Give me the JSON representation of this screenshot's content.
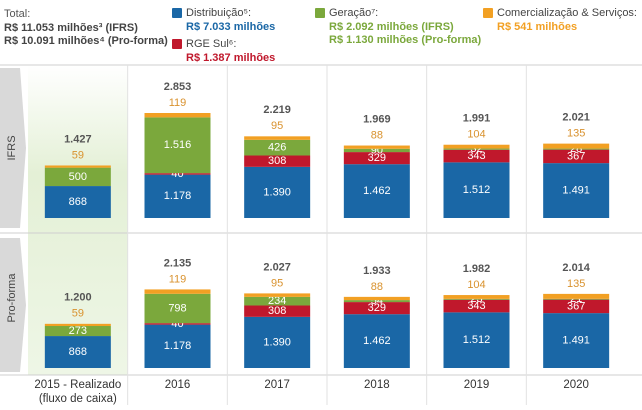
{
  "chart_data": {
    "type": "bar",
    "stacked": true,
    "totals_label": "Total:",
    "totals_notes": [
      "R$ 11.053 milhões³ (IFRS)",
      "R$ 10.091 milhões⁴ (Pro-forma)"
    ],
    "categories": [
      "2015 - Realizado (fluxo de caixa)",
      "2016",
      "2017",
      "2018",
      "2019",
      "2020"
    ],
    "series": [
      {
        "name": "Distribuição⁵:",
        "color": "#1a67a6",
        "notes": [
          "R$ 7.033 milhões"
        ]
      },
      {
        "name": "RGE Sul⁶:",
        "color": "#c0182c",
        "notes": [
          "R$ 1.387 milhões"
        ]
      },
      {
        "name": "Geração⁷:",
        "color": "#7ba83c",
        "notes": [
          "R$ 2.092 milhões (IFRS)",
          "R$ 1.130 milhões (Pro-forma)"
        ]
      },
      {
        "name": "Comercialização & Serviços:",
        "color": "#f2a023",
        "notes": [
          "R$ 541 milhões"
        ]
      }
    ],
    "panels": [
      {
        "label": "IFRS",
        "series": [
          {
            "values": [
              868,
              1178,
              1390,
              1462,
              1512,
              1491
            ],
            "value_labels": [
              "868",
              "1.178",
              "1.390",
              "1.462",
              "1.512",
              "1.491"
            ]
          },
          {
            "values": [
              null,
              40,
              308,
              329,
              343,
              367
            ]
          },
          {
            "values": [
              500,
              1516,
              426,
              90,
              32,
              28
            ],
            "value_labels": [
              "500",
              "1.516",
              "426",
              "90",
              "32",
              "28"
            ]
          },
          {
            "values": [
              59,
              119,
              95,
              88,
              104,
              135
            ]
          }
        ],
        "totals": {
          "values": [
            1427,
            2853,
            2219,
            1969,
            1991,
            2021
          ],
          "value_labels": [
            "1.427",
            "2.853",
            "2.219",
            "1.969",
            "1.991",
            "2.021"
          ]
        }
      },
      {
        "label": "Pro-forma",
        "series": [
          {
            "values": [
              868,
              1178,
              1390,
              1462,
              1512,
              1491
            ],
            "value_labels": [
              "868",
              "1.178",
              "1.390",
              "1.462",
              "1.512",
              "1.491"
            ]
          },
          {
            "values": [
              null,
              40,
              308,
              329,
              343,
              367
            ]
          },
          {
            "values": [
              273,
              798,
              234,
              54,
              23,
              21
            ]
          },
          {
            "values": [
              59,
              119,
              95,
              88,
              104,
              135
            ]
          }
        ],
        "totals": {
          "values": [
            1200,
            2135,
            2027,
            1933,
            1982,
            2014
          ],
          "value_labels": [
            "1.200",
            "2.135",
            "2.027",
            "1.933",
            "1.982",
            "2.014"
          ]
        }
      }
    ]
  }
}
